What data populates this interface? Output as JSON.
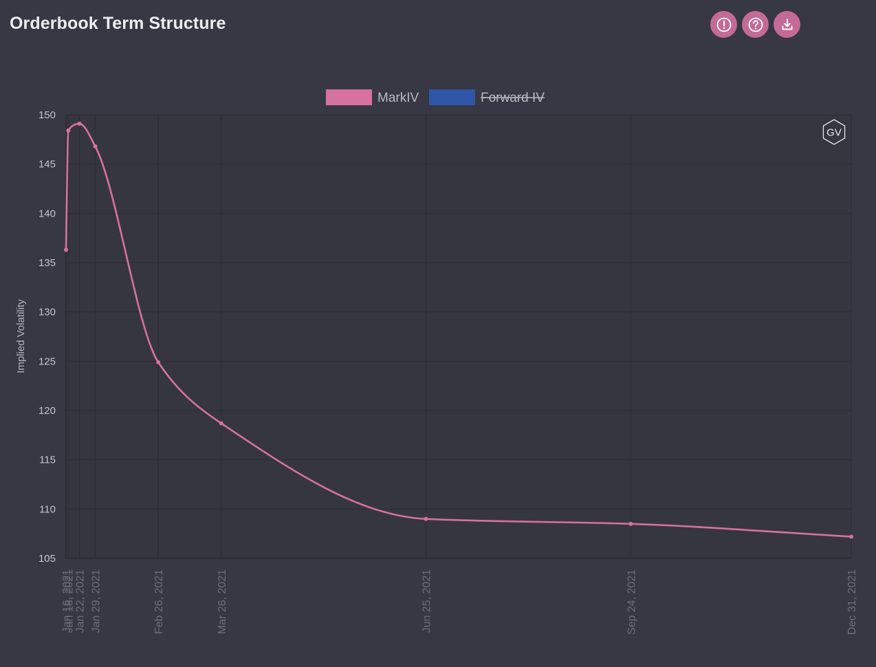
{
  "header": {
    "title": "Orderbook Term Structure",
    "buttons": [
      {
        "name": "alert-button",
        "icon": "exclamation-circle-icon"
      },
      {
        "name": "help-button",
        "icon": "question-circle-icon"
      },
      {
        "name": "download-button",
        "icon": "download-icon"
      }
    ]
  },
  "watermark": {
    "text": "GV",
    "icon": "hexagon-logo-icon"
  },
  "colors": {
    "background": "#383844",
    "plot_background": "#363641",
    "accent": "#c46a96",
    "series_markiv": "#d6729f",
    "series_forward": "#2f56a8",
    "grid": "#2c2c35"
  },
  "chart_data": {
    "type": "line",
    "title": "",
    "xlabel": "",
    "ylabel": "Implied Volatility",
    "ylim": [
      105,
      150
    ],
    "yticks": [
      150,
      145,
      140,
      135,
      130,
      125,
      120,
      115,
      110,
      105
    ],
    "xlim": [
      "2021-01-16",
      "2021-12-31"
    ],
    "x_axis_type": "date",
    "grid": true,
    "legend_position": "top-center",
    "legend": [
      {
        "name": "MarkIV",
        "hidden": false
      },
      {
        "name": "Forward IV",
        "hidden": true
      }
    ],
    "x_tick_labels": [
      "Jan 16, 2021",
      "Jan 18, 2021",
      "Jan 22, 2021",
      "Jan 29, 2021",
      "Feb 26, 2021",
      "Mar 26, 2021",
      "Jun 25, 2021",
      "Sep 24, 2021",
      "Dec 31, 2021"
    ],
    "series": [
      {
        "name": "MarkIV",
        "x": [
          "2021-01-16",
          "2021-01-17",
          "2021-01-22",
          "2021-01-29",
          "2021-02-26",
          "2021-03-26",
          "2021-06-25",
          "2021-09-24",
          "2021-12-31"
        ],
        "values": [
          136.3,
          148.4,
          149.1,
          146.8,
          124.9,
          118.7,
          109.0,
          108.5,
          107.2
        ]
      },
      {
        "name": "Forward IV",
        "hidden": true,
        "x": [],
        "values": []
      }
    ]
  }
}
